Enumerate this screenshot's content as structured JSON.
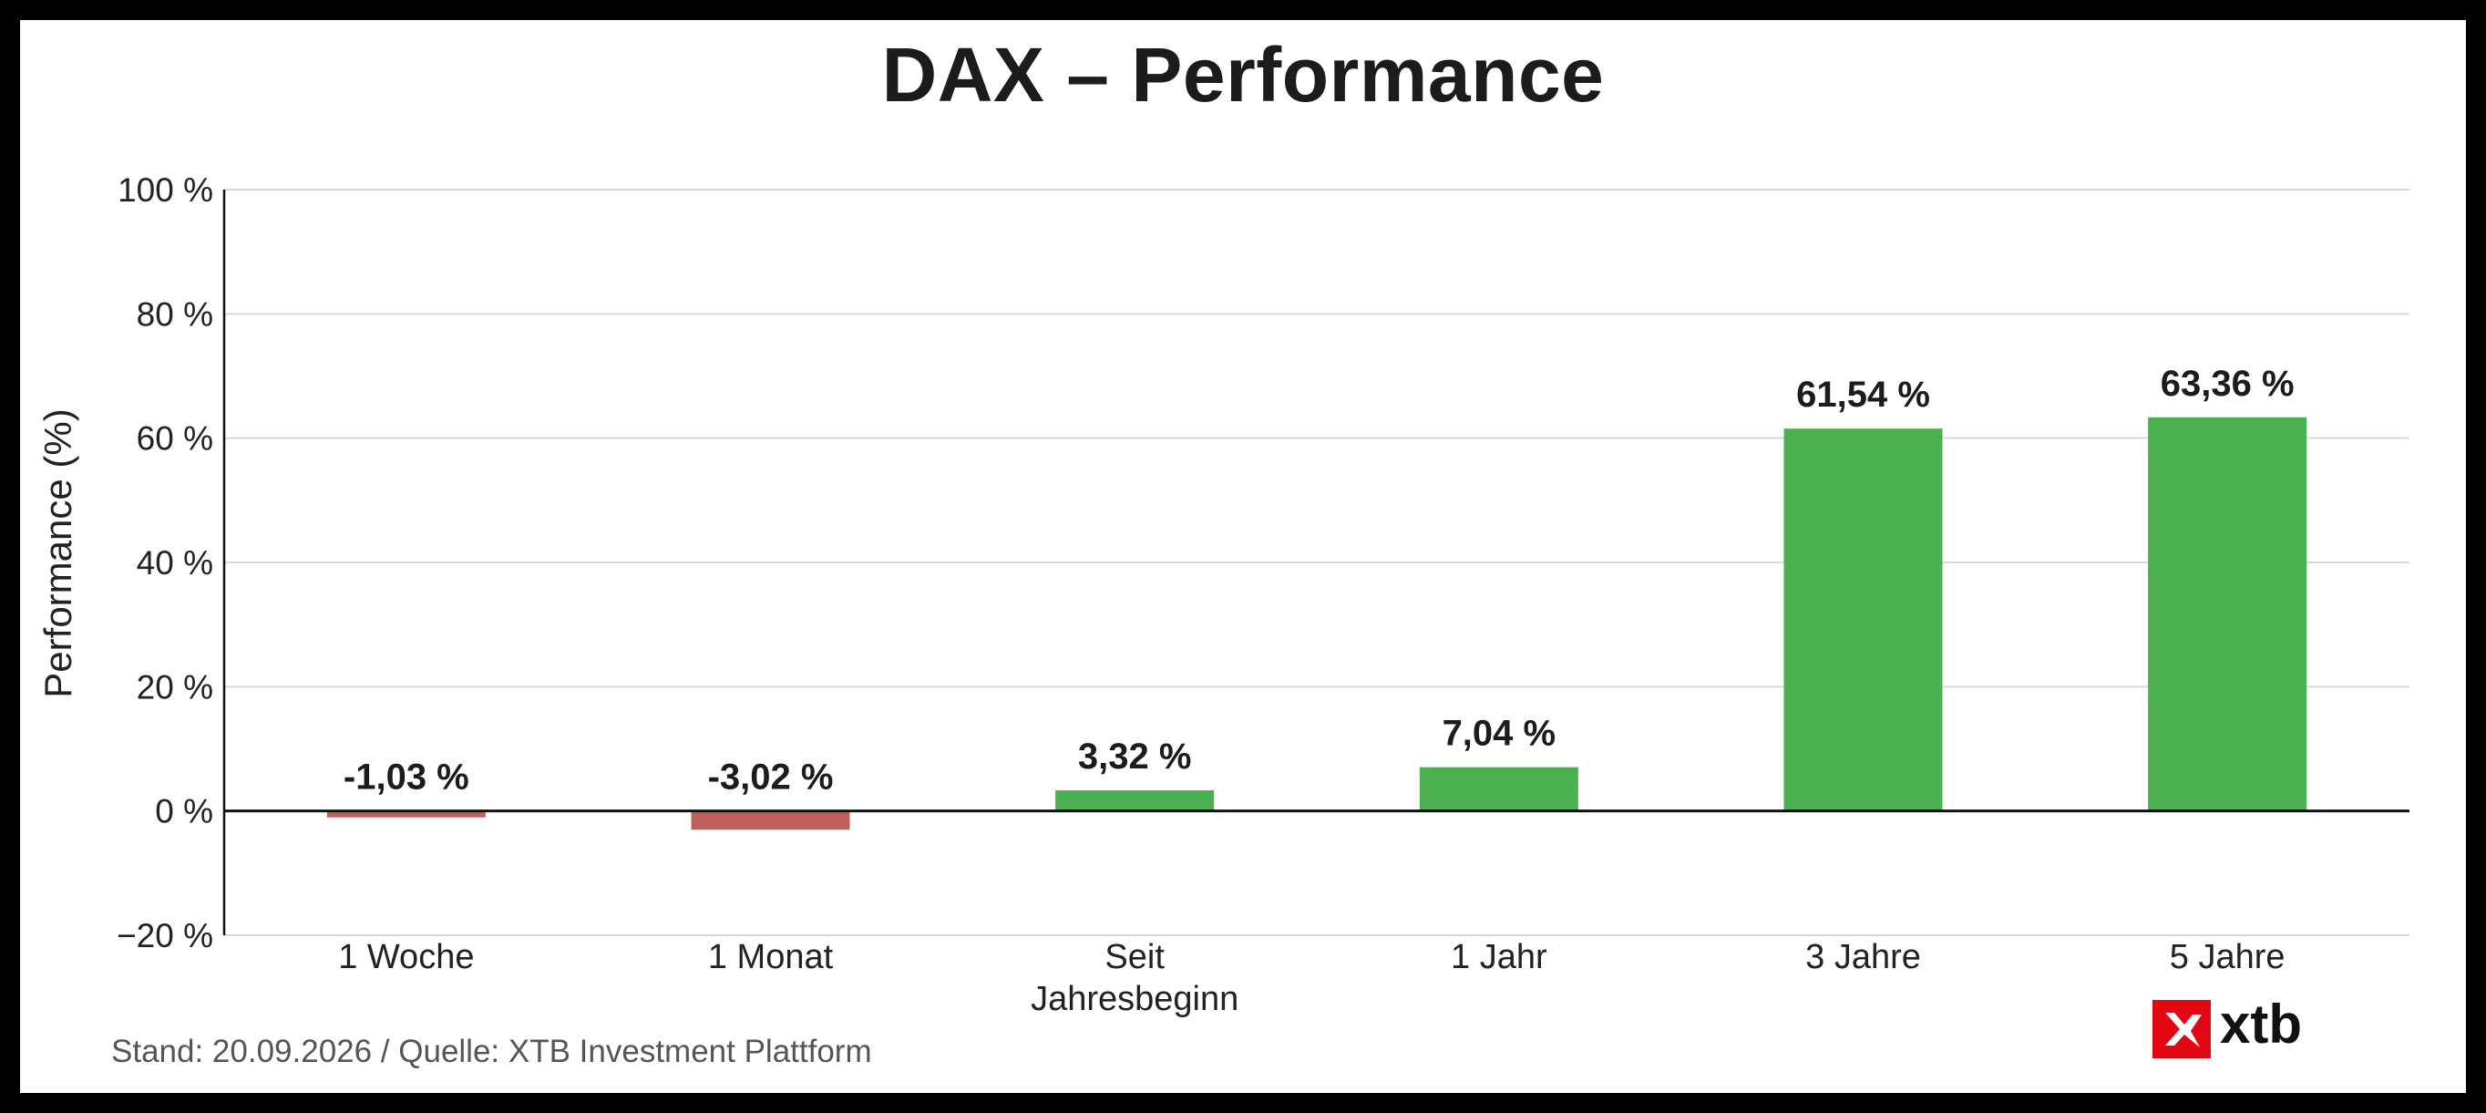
{
  "chart_data": {
    "type": "bar",
    "title": "DAX – Performance",
    "ylabel": "Performance (%)",
    "xlabel": "",
    "categories": [
      [
        "1 Woche"
      ],
      [
        "1 Monat"
      ],
      [
        "Seit",
        "Jahresbeginn"
      ],
      [
        "1 Jahr"
      ],
      [
        "3 Jahre"
      ],
      [
        "5 Jahre"
      ]
    ],
    "values": [
      -1.03,
      -3.02,
      3.32,
      7.04,
      61.54,
      63.36
    ],
    "value_labels": [
      "-1,03 %",
      "-3,02 %",
      "3,32 %",
      "7,04 %",
      "61,54 %",
      "63,36 %"
    ],
    "ylim": [
      -20,
      100
    ],
    "yticks": [
      -20,
      0,
      20,
      40,
      60,
      80,
      100
    ],
    "ytick_labels": [
      "−20 %",
      "0 %",
      "20 %",
      "40 %",
      "60 %",
      "80 %",
      "100 %"
    ],
    "grid": true,
    "colors": {
      "positive": "#4caf50",
      "negative": "#c0605a",
      "grid": "#d9d9d9",
      "axis": "#111111"
    }
  },
  "footer": {
    "source": "Stand: 20.09.2026 / Quelle: XTB Investment Plattform"
  },
  "logo": {
    "text": "xtb",
    "icon": "xtb-x-icon",
    "color": "#e30613"
  }
}
